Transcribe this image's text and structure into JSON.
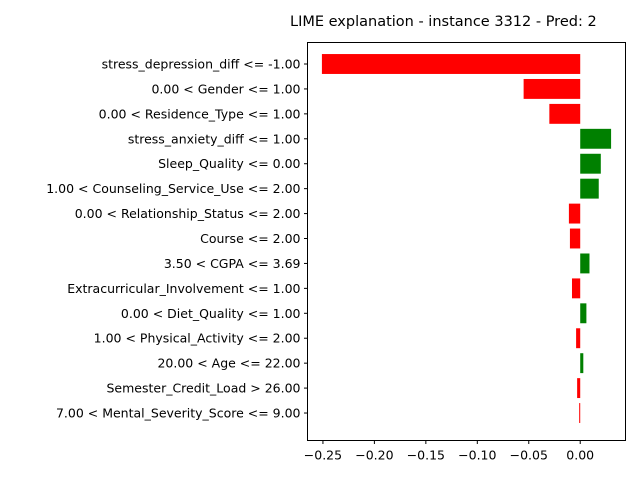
{
  "chart_data": {
    "type": "bar",
    "orientation": "horizontal",
    "title": "LIME explanation - instance 3312 - Pred: 2",
    "xlabel": "",
    "ylabel": "",
    "xlim": [
      -0.265,
      0.044
    ],
    "grid": false,
    "xticks": [
      -0.25,
      -0.2,
      -0.15,
      -0.1,
      -0.05,
      0.0
    ],
    "xtick_labels": [
      "−0.25",
      "−0.20",
      "−0.15",
      "−0.10",
      "−0.05",
      "0.00"
    ],
    "categories": [
      "stress_depression_diff <= -1.00",
      "0.00 < Gender <= 1.00",
      "0.00 < Residence_Type <= 1.00",
      "stress_anxiety_diff <= 1.00",
      "Sleep_Quality <= 0.00",
      "1.00 < Counseling_Service_Use <= 2.00",
      "0.00 < Relationship_Status <= 2.00",
      "Course <= 2.00",
      "3.50 < CGPA <= 3.69",
      "Extracurricular_Involvement <= 1.00",
      "0.00 < Diet_Quality <= 1.00",
      "1.00 < Physical_Activity <= 2.00",
      "20.00 < Age <= 22.00",
      "Semester_Credit_Load > 26.00",
      "7.00 < Mental_Severity_Score <= 9.00"
    ],
    "values": [
      -0.251,
      -0.055,
      -0.03,
      0.03,
      0.02,
      0.018,
      -0.011,
      -0.01,
      0.009,
      -0.008,
      0.006,
      -0.004,
      0.003,
      -0.003,
      -0.001
    ],
    "colors": {
      "positive": "#008000",
      "negative": "#ff0000"
    }
  }
}
